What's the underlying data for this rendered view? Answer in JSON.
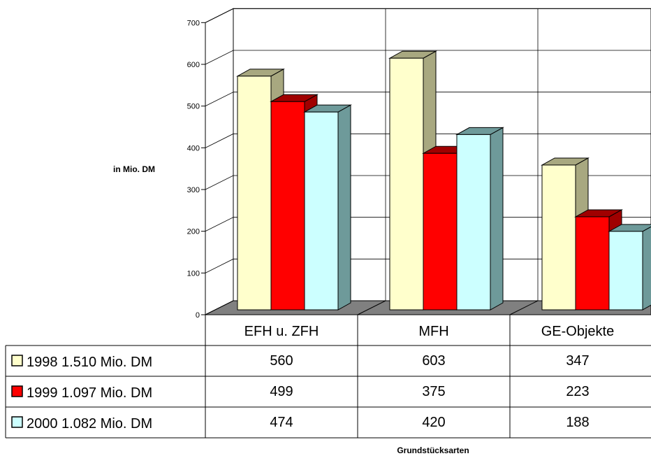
{
  "chart_data": {
    "type": "bar",
    "ylabel": "in Mio. DM",
    "xlabel": "Grundstücksarten",
    "ylim": [
      0,
      700
    ],
    "yticks": [
      "0",
      "100",
      "200",
      "300",
      "400",
      "500",
      "600",
      "700"
    ],
    "categories": [
      "EFH u. ZFH",
      "MFH",
      "GE-Objekte"
    ],
    "series": [
      {
        "name": "1998  1.510 Mio. DM",
        "values": [
          560,
          603,
          347
        ],
        "color": "#FFFFCC",
        "side": "#A8A880"
      },
      {
        "name": "1999  1.097 Mio. DM",
        "values": [
          499,
          375,
          223
        ],
        "color": "#FF0000",
        "side": "#A00000"
      },
      {
        "name": "2000  1.082 Mio. DM",
        "values": [
          474,
          420,
          188
        ],
        "color": "#CCFFFF",
        "side": "#6E9A9A"
      }
    ],
    "value_labels": [
      [
        "560",
        "603",
        "347"
      ],
      [
        "499",
        "375",
        "223"
      ],
      [
        "474",
        "420",
        "188"
      ]
    ],
    "grid": true,
    "legend": "table-left"
  }
}
